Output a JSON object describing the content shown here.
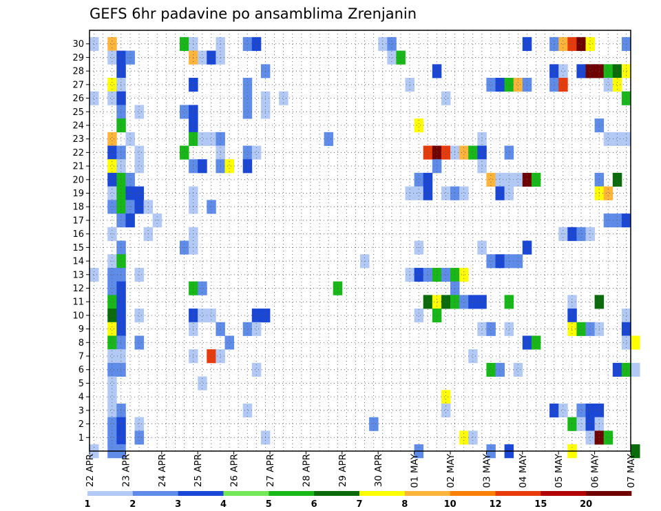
{
  "chart_data": {
    "type": "heatmap",
    "title": "GEFS 6hr padavine po ansamblima Zrenjanin",
    "xlabel": "",
    "ylabel": "",
    "x_ticks": [
      "22 APR",
      "23 APR",
      "24 APR",
      "25 APR",
      "26 APR",
      "27 APR",
      "28 APR",
      "29 APR",
      "30 APR",
      "01 MAY",
      "02 MAY",
      "03 MAY",
      "04 MAY",
      "05 MAY",
      "06 MAY",
      "07 MAY"
    ],
    "y_ticks": [
      "1",
      "2",
      "3",
      "4",
      "5",
      "6",
      "7",
      "8",
      "9",
      "10",
      "11",
      "12",
      "13",
      "14",
      "15",
      "16",
      "17",
      "18",
      "19",
      "20",
      "21",
      "22",
      "23",
      "24",
      "25",
      "26",
      "27",
      "28",
      "29",
      "30"
    ],
    "time_steps_per_day": 4,
    "grid": true,
    "legend_position": "bottom",
    "legend": {
      "labels": [
        "1",
        "2",
        "3",
        "4",
        "5",
        "6",
        "7",
        "8",
        "10",
        "12",
        "15",
        "20"
      ],
      "colors": [
        "#b3c9f5",
        "#5f8ce8",
        "#1a47d6",
        "#74e85a",
        "#17b817",
        "#0a6b0a",
        "#ffff00",
        "#ffb43c",
        "#ff7f00",
        "#e83b0c",
        "#b20000",
        "#6e0000"
      ]
    },
    "cells": [
      [
        30,
        0,
        1
      ],
      [
        30,
        2,
        8
      ],
      [
        30,
        10,
        5
      ],
      [
        30,
        11,
        1
      ],
      [
        30,
        14,
        1
      ],
      [
        30,
        17,
        2
      ],
      [
        30,
        18,
        3
      ],
      [
        30,
        32,
        1
      ],
      [
        30,
        33,
        2
      ],
      [
        30,
        48,
        3
      ],
      [
        30,
        51,
        2
      ],
      [
        30,
        52,
        8
      ],
      [
        30,
        53,
        10
      ],
      [
        30,
        54,
        12
      ],
      [
        30,
        55,
        7
      ],
      [
        30,
        59,
        2
      ],
      [
        29,
        2,
        1
      ],
      [
        29,
        3,
        3
      ],
      [
        29,
        4,
        2
      ],
      [
        29,
        11,
        8
      ],
      [
        29,
        12,
        1
      ],
      [
        29,
        13,
        3
      ],
      [
        29,
        14,
        1
      ],
      [
        29,
        33,
        1
      ],
      [
        29,
        34,
        5
      ],
      [
        28,
        3,
        3
      ],
      [
        28,
        19,
        2
      ],
      [
        28,
        38,
        3
      ],
      [
        28,
        51,
        3
      ],
      [
        28,
        52,
        1
      ],
      [
        28,
        54,
        3
      ],
      [
        28,
        55,
        15
      ],
      [
        28,
        56,
        12
      ],
      [
        28,
        57,
        5
      ],
      [
        28,
        58,
        6
      ],
      [
        28,
        59,
        7
      ],
      [
        27,
        2,
        7
      ],
      [
        27,
        3,
        1
      ],
      [
        27,
        11,
        3
      ],
      [
        27,
        17,
        2
      ],
      [
        27,
        35,
        1
      ],
      [
        27,
        44,
        2
      ],
      [
        27,
        45,
        3
      ],
      [
        27,
        46,
        5
      ],
      [
        27,
        47,
        8
      ],
      [
        27,
        48,
        2
      ],
      [
        27,
        51,
        2
      ],
      [
        27,
        52,
        10
      ],
      [
        27,
        57,
        1
      ],
      [
        27,
        58,
        7
      ],
      [
        26,
        0,
        1
      ],
      [
        26,
        2,
        1
      ],
      [
        26,
        3,
        3
      ],
      [
        26,
        17,
        2
      ],
      [
        26,
        19,
        1
      ],
      [
        26,
        21,
        1
      ],
      [
        26,
        39,
        1
      ],
      [
        26,
        59,
        5
      ],
      [
        25,
        3,
        2
      ],
      [
        25,
        5,
        1
      ],
      [
        25,
        10,
        2
      ],
      [
        25,
        11,
        3
      ],
      [
        25,
        17,
        2
      ],
      [
        25,
        19,
        1
      ],
      [
        24,
        3,
        5
      ],
      [
        24,
        11,
        3
      ],
      [
        24,
        36,
        7
      ],
      [
        24,
        56,
        2
      ],
      [
        23,
        2,
        8
      ],
      [
        23,
        4,
        1
      ],
      [
        23,
        11,
        5
      ],
      [
        23,
        12,
        1
      ],
      [
        23,
        13,
        1
      ],
      [
        23,
        14,
        2
      ],
      [
        23,
        26,
        2
      ],
      [
        23,
        43,
        1
      ],
      [
        23,
        57,
        1
      ],
      [
        23,
        58,
        1
      ],
      [
        23,
        59,
        1
      ],
      [
        22,
        2,
        3
      ],
      [
        22,
        3,
        2
      ],
      [
        22,
        5,
        1
      ],
      [
        22,
        10,
        5
      ],
      [
        22,
        14,
        1
      ],
      [
        22,
        17,
        2
      ],
      [
        22,
        18,
        1
      ],
      [
        22,
        37,
        10
      ],
      [
        22,
        38,
        12
      ],
      [
        22,
        39,
        10
      ],
      [
        22,
        40,
        1
      ],
      [
        22,
        41,
        8
      ],
      [
        22,
        42,
        5
      ],
      [
        22,
        43,
        3
      ],
      [
        22,
        46,
        2
      ],
      [
        21,
        2,
        7
      ],
      [
        21,
        3,
        1
      ],
      [
        21,
        5,
        1
      ],
      [
        21,
        11,
        2
      ],
      [
        21,
        12,
        3
      ],
      [
        21,
        14,
        2
      ],
      [
        21,
        15,
        7
      ],
      [
        21,
        17,
        3
      ],
      [
        21,
        38,
        2
      ],
      [
        21,
        43,
        1
      ],
      [
        20,
        2,
        3
      ],
      [
        20,
        3,
        5
      ],
      [
        20,
        4,
        2
      ],
      [
        20,
        36,
        2
      ],
      [
        20,
        37,
        3
      ],
      [
        20,
        44,
        8
      ],
      [
        20,
        45,
        1
      ],
      [
        20,
        46,
        1
      ],
      [
        20,
        47,
        1
      ],
      [
        20,
        48,
        20
      ],
      [
        20,
        49,
        5
      ],
      [
        20,
        56,
        2
      ],
      [
        20,
        58,
        6
      ],
      [
        19,
        2,
        1
      ],
      [
        19,
        3,
        5
      ],
      [
        19,
        4,
        3
      ],
      [
        19,
        5,
        3
      ],
      [
        19,
        11,
        1
      ],
      [
        19,
        35,
        1
      ],
      [
        19,
        36,
        1
      ],
      [
        19,
        37,
        3
      ],
      [
        19,
        39,
        1
      ],
      [
        19,
        40,
        2
      ],
      [
        19,
        41,
        1
      ],
      [
        19,
        45,
        3
      ],
      [
        19,
        46,
        1
      ],
      [
        19,
        56,
        7
      ],
      [
        19,
        57,
        8
      ],
      [
        18,
        2,
        2
      ],
      [
        18,
        3,
        5
      ],
      [
        18,
        4,
        2
      ],
      [
        18,
        5,
        3
      ],
      [
        18,
        6,
        1
      ],
      [
        18,
        11,
        1
      ],
      [
        18,
        13,
        2
      ],
      [
        17,
        3,
        2
      ],
      [
        17,
        4,
        3
      ],
      [
        17,
        7,
        1
      ],
      [
        17,
        57,
        2
      ],
      [
        17,
        58,
        2
      ],
      [
        17,
        59,
        3
      ],
      [
        16,
        2,
        1
      ],
      [
        16,
        6,
        1
      ],
      [
        16,
        11,
        1
      ],
      [
        16,
        52,
        1
      ],
      [
        16,
        53,
        3
      ],
      [
        16,
        54,
        2
      ],
      [
        16,
        55,
        1
      ],
      [
        15,
        3,
        2
      ],
      [
        15,
        10,
        2
      ],
      [
        15,
        11,
        1
      ],
      [
        15,
        36,
        1
      ],
      [
        15,
        43,
        1
      ],
      [
        15,
        48,
        3
      ],
      [
        14,
        2,
        1
      ],
      [
        14,
        3,
        5
      ],
      [
        14,
        30,
        1
      ],
      [
        14,
        44,
        2
      ],
      [
        14,
        45,
        3
      ],
      [
        14,
        46,
        2
      ],
      [
        14,
        47,
        2
      ],
      [
        13,
        0,
        1
      ],
      [
        13,
        2,
        2
      ],
      [
        13,
        3,
        2
      ],
      [
        13,
        5,
        1
      ],
      [
        13,
        35,
        1
      ],
      [
        13,
        36,
        3
      ],
      [
        13,
        37,
        2
      ],
      [
        13,
        38,
        5
      ],
      [
        13,
        39,
        2
      ],
      [
        13,
        40,
        5
      ],
      [
        13,
        41,
        7
      ],
      [
        12,
        2,
        2
      ],
      [
        12,
        3,
        3
      ],
      [
        12,
        11,
        5
      ],
      [
        12,
        12,
        2
      ],
      [
        12,
        27,
        5
      ],
      [
        12,
        40,
        2
      ],
      [
        11,
        2,
        5
      ],
      [
        11,
        3,
        3
      ],
      [
        11,
        37,
        6
      ],
      [
        11,
        38,
        7
      ],
      [
        11,
        39,
        6
      ],
      [
        11,
        40,
        5
      ],
      [
        11,
        41,
        2
      ],
      [
        11,
        42,
        3
      ],
      [
        11,
        43,
        3
      ],
      [
        11,
        46,
        5
      ],
      [
        11,
        53,
        1
      ],
      [
        11,
        56,
        6
      ],
      [
        10,
        2,
        6
      ],
      [
        10,
        3,
        3
      ],
      [
        10,
        5,
        1
      ],
      [
        10,
        11,
        3
      ],
      [
        10,
        12,
        1
      ],
      [
        10,
        13,
        1
      ],
      [
        10,
        18,
        3
      ],
      [
        10,
        19,
        3
      ],
      [
        10,
        36,
        1
      ],
      [
        10,
        38,
        5
      ],
      [
        10,
        53,
        3
      ],
      [
        10,
        59,
        1
      ],
      [
        9,
        2,
        7
      ],
      [
        9,
        3,
        3
      ],
      [
        9,
        11,
        1
      ],
      [
        9,
        14,
        2
      ],
      [
        9,
        17,
        2
      ],
      [
        9,
        18,
        1
      ],
      [
        9,
        43,
        1
      ],
      [
        9,
        44,
        2
      ],
      [
        9,
        46,
        1
      ],
      [
        9,
        53,
        7
      ],
      [
        9,
        54,
        5
      ],
      [
        9,
        55,
        2
      ],
      [
        9,
        56,
        1
      ],
      [
        9,
        59,
        3
      ],
      [
        8,
        2,
        5
      ],
      [
        8,
        3,
        2
      ],
      [
        8,
        5,
        2
      ],
      [
        8,
        15,
        2
      ],
      [
        8,
        48,
        3
      ],
      [
        8,
        49,
        5
      ],
      [
        8,
        59,
        1
      ],
      [
        8,
        60,
        7
      ],
      [
        7,
        2,
        1
      ],
      [
        7,
        3,
        1
      ],
      [
        7,
        11,
        1
      ],
      [
        7,
        13,
        10
      ],
      [
        7,
        14,
        1
      ],
      [
        7,
        42,
        1
      ],
      [
        6,
        2,
        2
      ],
      [
        6,
        3,
        2
      ],
      [
        6,
        18,
        1
      ],
      [
        6,
        44,
        5
      ],
      [
        6,
        45,
        2
      ],
      [
        6,
        47,
        1
      ],
      [
        6,
        58,
        3
      ],
      [
        6,
        59,
        5
      ],
      [
        6,
        60,
        1
      ],
      [
        5,
        2,
        1
      ],
      [
        5,
        12,
        1
      ],
      [
        4,
        2,
        1
      ],
      [
        4,
        39,
        7
      ],
      [
        3,
        2,
        1
      ],
      [
        3,
        3,
        2
      ],
      [
        3,
        17,
        1
      ],
      [
        3,
        39,
        1
      ],
      [
        3,
        51,
        3
      ],
      [
        3,
        52,
        1
      ],
      [
        3,
        54,
        2
      ],
      [
        3,
        55,
        3
      ],
      [
        3,
        56,
        3
      ],
      [
        2,
        2,
        2
      ],
      [
        2,
        3,
        3
      ],
      [
        2,
        5,
        1
      ],
      [
        2,
        31,
        2
      ],
      [
        2,
        53,
        5
      ],
      [
        2,
        54,
        1
      ],
      [
        2,
        55,
        3
      ],
      [
        2,
        56,
        1
      ],
      [
        1,
        2,
        2
      ],
      [
        1,
        3,
        3
      ],
      [
        1,
        5,
        2
      ],
      [
        1,
        19,
        1
      ],
      [
        1,
        41,
        7
      ],
      [
        1,
        42,
        1
      ],
      [
        1,
        55,
        1
      ],
      [
        1,
        56,
        15
      ],
      [
        1,
        57,
        5
      ],
      [
        0,
        0,
        1
      ],
      [
        0,
        2,
        2
      ],
      [
        0,
        3,
        2
      ],
      [
        0,
        36,
        2
      ],
      [
        0,
        44,
        2
      ],
      [
        0,
        46,
        3
      ],
      [
        0,
        53,
        7
      ],
      [
        0,
        60,
        6
      ]
    ]
  }
}
